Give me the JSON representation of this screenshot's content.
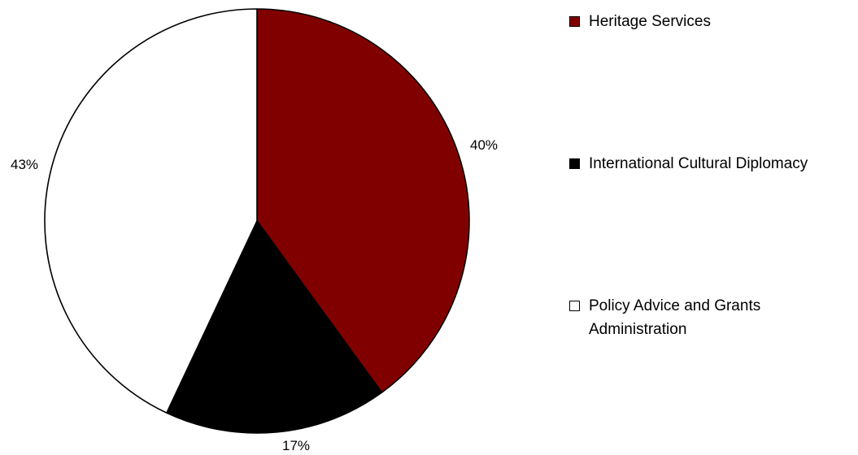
{
  "chart_data": {
    "type": "pie",
    "slices": [
      {
        "label": "Heritage Services",
        "value": 40,
        "display": "40%",
        "color": "#800000"
      },
      {
        "label": "International Cultural Diplomacy",
        "value": 17,
        "display": "17%",
        "color": "#000000"
      },
      {
        "label": "Policy Advice and Grants Administration",
        "value": 43,
        "display": "43%",
        "color": "#ffffff"
      }
    ],
    "start_angle": "12 o'clock",
    "direction": "clockwise",
    "legend_position": "right",
    "slice_border_color": "#000000"
  }
}
